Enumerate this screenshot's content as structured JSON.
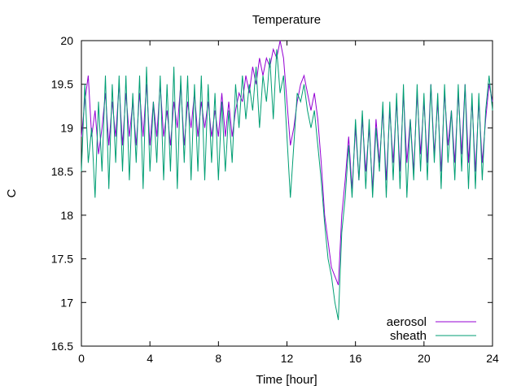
{
  "chart_data": {
    "type": "line",
    "title": "Temperature",
    "xlabel": "Time [hour]",
    "ylabel": "C",
    "xlim": [
      0,
      24
    ],
    "ylim": [
      16.5,
      20
    ],
    "xticks": [
      0,
      4,
      8,
      12,
      16,
      20,
      24
    ],
    "xtick_labels": [
      "0",
      "4",
      "8",
      "12",
      "16",
      "20",
      "24"
    ],
    "yticks": [
      16.5,
      17,
      17.5,
      18,
      18.5,
      19,
      19.5,
      20
    ],
    "ytick_labels": [
      "16.5",
      "17",
      "17.5",
      "18",
      "18.5",
      "19",
      "19.5",
      "20"
    ],
    "grid": false,
    "legend_position": "bottom-right",
    "series": [
      {
        "name": "aerosol",
        "color": "#9400d3",
        "x": [
          0,
          0.2,
          0.4,
          0.6,
          0.8,
          1.0,
          1.2,
          1.4,
          1.6,
          1.8,
          2.0,
          2.2,
          2.4,
          2.6,
          2.8,
          3.0,
          3.2,
          3.4,
          3.6,
          3.8,
          4.0,
          4.2,
          4.4,
          4.6,
          4.8,
          5.0,
          5.2,
          5.4,
          5.6,
          5.8,
          6.0,
          6.2,
          6.4,
          6.6,
          6.8,
          7.0,
          7.2,
          7.4,
          7.6,
          7.8,
          8.0,
          8.2,
          8.4,
          8.6,
          8.8,
          9.0,
          9.2,
          9.4,
          9.6,
          9.8,
          10.0,
          10.2,
          10.4,
          10.6,
          10.8,
          11.0,
          11.2,
          11.4,
          11.6,
          11.8,
          12.0,
          12.2,
          12.4,
          12.6,
          12.8,
          13.0,
          13.2,
          13.4,
          13.6,
          13.8,
          14.0,
          14.2,
          14.4,
          14.6,
          14.8,
          15.0,
          15.2,
          15.4,
          15.6,
          15.8,
          16.0,
          16.2,
          16.4,
          16.6,
          16.8,
          17.0,
          17.2,
          17.4,
          17.6,
          17.8,
          18.0,
          18.2,
          18.4,
          18.6,
          18.8,
          19.0,
          19.2,
          19.4,
          19.6,
          19.8,
          20.0,
          20.2,
          20.4,
          20.6,
          20.8,
          21.0,
          21.2,
          21.4,
          21.6,
          21.8,
          22.0,
          22.2,
          22.4,
          22.6,
          22.8,
          23.0,
          23.2,
          23.4,
          23.6,
          23.8,
          24.0
        ],
        "values": [
          18.9,
          19.3,
          19.6,
          18.9,
          19.2,
          18.7,
          19.0,
          19.4,
          18.8,
          19.3,
          18.9,
          19.5,
          18.8,
          19.4,
          18.9,
          19.3,
          18.8,
          19.4,
          18.9,
          19.5,
          18.8,
          19.3,
          18.9,
          19.5,
          18.9,
          19.2,
          18.8,
          19.3,
          19.0,
          19.5,
          18.8,
          19.3,
          19.0,
          19.4,
          18.9,
          19.3,
          19.0,
          19.3,
          18.9,
          19.2,
          18.9,
          19.4,
          18.9,
          19.3,
          18.9,
          19.2,
          19.4,
          19.3,
          19.6,
          19.4,
          19.7,
          19.5,
          19.8,
          19.6,
          19.8,
          19.7,
          19.9,
          19.8,
          20.0,
          19.8,
          19.3,
          18.8,
          19.0,
          19.3,
          19.5,
          19.6,
          19.4,
          19.2,
          19.4,
          19.1,
          18.6,
          18.0,
          17.7,
          17.4,
          17.3,
          17.2,
          18.0,
          18.4,
          18.9,
          18.3,
          19.0,
          18.4,
          19.1,
          18.5,
          19.0,
          18.3,
          19.1,
          18.6,
          19.2,
          18.4,
          19.2,
          18.6,
          19.3,
          18.5,
          19.4,
          18.6,
          19.1,
          18.5,
          19.4,
          18.7,
          19.3,
          18.6,
          19.5,
          18.7,
          19.3,
          18.5,
          19.4,
          18.8,
          19.2,
          18.6,
          19.4,
          18.7,
          19.5,
          18.6,
          19.3,
          18.5,
          19.3,
          18.6,
          19.1,
          19.5,
          19.3
        ]
      },
      {
        "name": "sheath",
        "color": "#009e73",
        "x": [
          0,
          0.2,
          0.4,
          0.6,
          0.8,
          1.0,
          1.2,
          1.4,
          1.6,
          1.8,
          2.0,
          2.2,
          2.4,
          2.6,
          2.8,
          3.0,
          3.2,
          3.4,
          3.6,
          3.8,
          4.0,
          4.2,
          4.4,
          4.6,
          4.8,
          5.0,
          5.2,
          5.4,
          5.6,
          5.8,
          6.0,
          6.2,
          6.4,
          6.6,
          6.8,
          7.0,
          7.2,
          7.4,
          7.6,
          7.8,
          8.0,
          8.2,
          8.4,
          8.6,
          8.8,
          9.0,
          9.2,
          9.4,
          9.6,
          9.8,
          10.0,
          10.2,
          10.4,
          10.6,
          10.8,
          11.0,
          11.2,
          11.4,
          11.6,
          11.8,
          12.0,
          12.2,
          12.4,
          12.6,
          12.8,
          13.0,
          13.2,
          13.4,
          13.6,
          13.8,
          14.0,
          14.2,
          14.4,
          14.6,
          14.8,
          15.0,
          15.2,
          15.4,
          15.6,
          15.8,
          16.0,
          16.2,
          16.4,
          16.6,
          16.8,
          17.0,
          17.2,
          17.4,
          17.6,
          17.8,
          18.0,
          18.2,
          18.4,
          18.6,
          18.8,
          19.0,
          19.2,
          19.4,
          19.6,
          19.8,
          20.0,
          20.2,
          20.4,
          20.6,
          20.8,
          21.0,
          21.2,
          21.4,
          21.6,
          21.8,
          22.0,
          22.2,
          22.4,
          22.6,
          22.8,
          23.0,
          23.2,
          23.4,
          23.6,
          23.8,
          24.0
        ],
        "values": [
          18.5,
          19.5,
          18.6,
          19.0,
          18.2,
          19.3,
          18.5,
          19.6,
          18.3,
          19.5,
          18.6,
          19.6,
          18.5,
          19.6,
          18.4,
          19.4,
          18.6,
          19.6,
          18.3,
          19.7,
          18.5,
          19.3,
          18.6,
          19.6,
          18.4,
          19.5,
          18.5,
          19.7,
          18.3,
          19.6,
          18.6,
          19.6,
          18.4,
          19.5,
          18.5,
          19.6,
          18.4,
          19.5,
          18.6,
          19.4,
          18.4,
          19.3,
          18.5,
          19.2,
          18.6,
          19.5,
          19.0,
          19.6,
          19.1,
          19.5,
          19.2,
          19.7,
          19.0,
          19.6,
          19.3,
          19.8,
          19.1,
          19.9,
          19.4,
          19.6,
          18.9,
          18.2,
          18.8,
          19.4,
          19.3,
          19.5,
          19.2,
          19.0,
          19.2,
          18.8,
          18.4,
          17.9,
          17.5,
          17.3,
          17.0,
          16.8,
          17.8,
          18.2,
          18.8,
          18.2,
          19.1,
          18.4,
          19.2,
          18.3,
          19.1,
          18.2,
          19.0,
          18.5,
          19.3,
          18.2,
          19.3,
          18.4,
          19.4,
          18.3,
          19.5,
          18.2,
          19.1,
          18.4,
          19.5,
          18.5,
          19.4,
          18.4,
          19.5,
          18.6,
          19.4,
          18.3,
          19.5,
          18.6,
          19.2,
          18.4,
          19.5,
          18.5,
          19.5,
          18.3,
          19.4,
          18.3,
          19.4,
          18.4,
          19.2,
          19.6,
          19.2
        ]
      }
    ]
  }
}
